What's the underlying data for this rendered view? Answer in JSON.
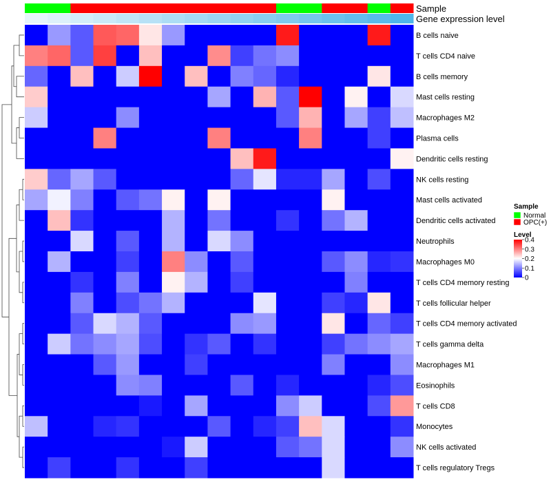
{
  "chart_data": {
    "type": "heatmap",
    "annotation_tracks": [
      "Sample",
      "Gene expression level"
    ],
    "sample_groups": [
      "Normal",
      "Normal",
      "OPC(+)",
      "OPC(+)",
      "OPC(+)",
      "OPC(+)",
      "OPC(+)",
      "OPC(+)",
      "OPC(+)",
      "OPC(+)",
      "OPC(+)",
      "Normal",
      "Normal",
      "OPC(+)",
      "OPC(+)",
      "Normal",
      "OPC(+)"
    ],
    "rows": [
      "B cells naive",
      "T cells CD4 naive",
      "B cells memory",
      "Mast cells resting",
      "Macrophages M2",
      "Plasma cells",
      "Dendritic cells resting",
      "NK cells resting",
      "Mast cells activated",
      "Dendritic cells activated",
      "Neutrophils",
      "Macrophages M0",
      "T cells CD4 memory resting",
      "T cells follicular helper",
      "T cells CD4 memory activated",
      "T cells gamma delta",
      "Macrophages M1",
      "Eosinophils",
      "T cells CD8",
      "Monocytes",
      "NK cells activated",
      "T cells regulatory  Tregs"
    ],
    "values": [
      [
        0.0,
        0.12,
        0.07,
        0.33,
        0.32,
        0.22,
        0.12,
        0.0,
        0.0,
        0.0,
        0.0,
        0.38,
        0.0,
        0.0,
        0.0,
        0.38,
        0.0
      ],
      [
        0.3,
        0.32,
        0.07,
        0.35,
        0.0,
        0.25,
        0.0,
        0.0,
        0.29,
        0.05,
        0.09,
        0.11,
        0.0,
        0.0,
        0.0,
        0.0,
        0.0
      ],
      [
        0.08,
        0.0,
        0.25,
        0.0,
        0.16,
        0.4,
        0.0,
        0.25,
        0.0,
        0.1,
        0.08,
        0.03,
        0.0,
        0.0,
        0.0,
        0.22,
        0.0
      ],
      [
        0.24,
        0.0,
        0.0,
        0.0,
        0.0,
        0.0,
        0.0,
        0.0,
        0.13,
        0.0,
        0.26,
        0.07,
        0.4,
        0.0,
        0.21,
        0.0,
        0.17
      ],
      [
        0.16,
        0.0,
        0.0,
        0.0,
        0.11,
        0.0,
        0.0,
        0.0,
        0.0,
        0.0,
        0.0,
        0.07,
        0.26,
        0.0,
        0.13,
        0.05,
        0.15
      ],
      [
        0.0,
        0.0,
        0.0,
        0.3,
        0.0,
        0.0,
        0.0,
        0.0,
        0.3,
        0.0,
        0.0,
        0.0,
        0.3,
        0.0,
        0.0,
        0.05,
        0.0
      ],
      [
        0.0,
        0.0,
        0.0,
        0.0,
        0.0,
        0.0,
        0.0,
        0.0,
        0.0,
        0.25,
        0.38,
        0.0,
        0.0,
        0.0,
        0.0,
        0.0,
        0.21
      ],
      [
        0.24,
        0.08,
        0.13,
        0.07,
        0.0,
        0.0,
        0.0,
        0.0,
        0.0,
        0.08,
        0.18,
        0.03,
        0.03,
        0.13,
        0.0,
        0.06,
        0.0
      ],
      [
        0.13,
        0.19,
        0.1,
        0.0,
        0.07,
        0.09,
        0.21,
        0.0,
        0.21,
        0.0,
        0.0,
        0.0,
        0.0,
        0.21,
        0.0,
        0.0,
        0.0
      ],
      [
        0.0,
        0.25,
        0.04,
        0.0,
        0.0,
        0.0,
        0.14,
        0.0,
        0.09,
        0.0,
        0.0,
        0.04,
        0.0,
        0.09,
        0.14,
        0.0,
        0.0
      ],
      [
        0.0,
        0.0,
        0.17,
        0.0,
        0.07,
        0.0,
        0.14,
        0.0,
        0.17,
        0.11,
        0.0,
        0.0,
        0.0,
        0.0,
        0.0,
        0.0,
        0.0
      ],
      [
        0.0,
        0.14,
        0.0,
        0.0,
        0.05,
        0.0,
        0.3,
        0.11,
        0.0,
        0.07,
        0.0,
        0.0,
        0.0,
        0.07,
        0.11,
        0.03,
        0.04
      ],
      [
        0.0,
        0.0,
        0.04,
        0.0,
        0.1,
        0.0,
        0.21,
        0.14,
        0.0,
        0.05,
        0.0,
        0.0,
        0.0,
        0.0,
        0.1,
        0.0,
        0.0
      ],
      [
        0.0,
        0.0,
        0.1,
        0.0,
        0.06,
        0.09,
        0.14,
        0.0,
        0.0,
        0.0,
        0.18,
        0.0,
        0.0,
        0.05,
        0.03,
        0.22,
        0.0
      ],
      [
        0.0,
        0.0,
        0.07,
        0.17,
        0.14,
        0.07,
        0.0,
        0.0,
        0.0,
        0.11,
        0.12,
        0.0,
        0.0,
        0.22,
        0.0,
        0.08,
        0.05
      ],
      [
        0.0,
        0.16,
        0.09,
        0.11,
        0.13,
        0.06,
        0.0,
        0.04,
        0.07,
        0.0,
        0.04,
        0.0,
        0.0,
        0.05,
        0.09,
        0.11,
        0.13
      ],
      [
        0.0,
        0.0,
        0.0,
        0.07,
        0.12,
        0.0,
        0.0,
        0.05,
        0.0,
        0.0,
        0.0,
        0.0,
        0.0,
        0.1,
        0.0,
        0.0,
        0.11
      ],
      [
        0.0,
        0.0,
        0.0,
        0.0,
        0.11,
        0.1,
        0.0,
        0.0,
        0.0,
        0.07,
        0.0,
        0.03,
        0.0,
        0.0,
        0.0,
        0.03,
        0.06
      ],
      [
        0.0,
        0.0,
        0.0,
        0.0,
        0.0,
        0.02,
        0.0,
        0.13,
        0.0,
        0.0,
        0.0,
        0.11,
        0.16,
        0.0,
        0.0,
        0.06,
        0.28
      ],
      [
        0.15,
        0.0,
        0.0,
        0.03,
        0.04,
        0.0,
        0.0,
        0.0,
        0.07,
        0.0,
        0.03,
        0.05,
        0.25,
        0.17,
        0.0,
        0.0,
        0.04
      ],
      [
        0.0,
        0.0,
        0.0,
        0.0,
        0.0,
        0.0,
        0.02,
        0.16,
        0.0,
        0.0,
        0.0,
        0.07,
        0.09,
        0.17,
        0.0,
        0.0,
        0.11
      ],
      [
        0.0,
        0.05,
        0.0,
        0.0,
        0.04,
        0.0,
        0.0,
        0.05,
        0.0,
        0.0,
        0.0,
        0.0,
        0.0,
        0.17,
        0.0,
        0.0,
        0.0
      ]
    ],
    "color_scale": {
      "low": "#0000ff",
      "mid": "#ffffff",
      "high": "#ff0000",
      "min": 0,
      "mid_value": 0.2,
      "max": 0.4
    },
    "legend": [
      {
        "title": "Sample",
        "items": [
          {
            "label": "Normal",
            "color": "#00ff00"
          },
          {
            "label": "OPC(+)",
            "color": "#ff0000"
          }
        ]
      },
      {
        "title": "Level",
        "ticks": [
          "0.4",
          "0.3",
          "0.2",
          "0.1",
          "0"
        ],
        "tick_values": [
          0.4,
          0.3,
          0.2,
          0.1,
          0
        ]
      }
    ],
    "dendrogram": "row clustering, left side",
    "legend_placement": "right",
    "grid": false
  }
}
